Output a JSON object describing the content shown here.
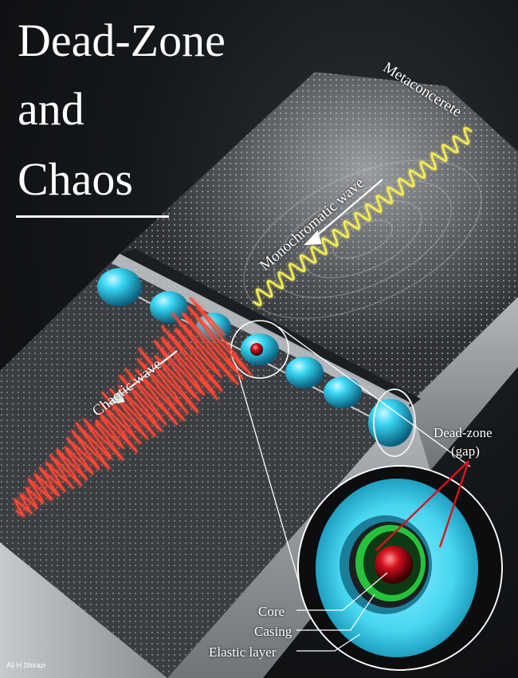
{
  "title": {
    "line1": "Dead-Zone",
    "line2": "and",
    "line3": "Chaos"
  },
  "labels": {
    "metaconcrete": "Metaconcerete",
    "monochromatic_wave": "Monochromatic wave",
    "chaotic_wave": "Chaotic wave",
    "dead_zone": "Dead-zone",
    "gap": "(gap)",
    "core": "Core",
    "casing": "Casing",
    "elastic_layer": "Elastic layer"
  },
  "credit": "Ali H Shirazi",
  "colors": {
    "background": "#0d0f11",
    "slab_top": "#4a4d51",
    "slab_side": "#8d9296",
    "inclusion": "#2fd3f2",
    "chaotic_wave": "#ff3a2a",
    "monochromatic_wave": "#f4ea4a",
    "core": "#d0101a",
    "casing": "#27c23b",
    "text": "#ffffff"
  }
}
